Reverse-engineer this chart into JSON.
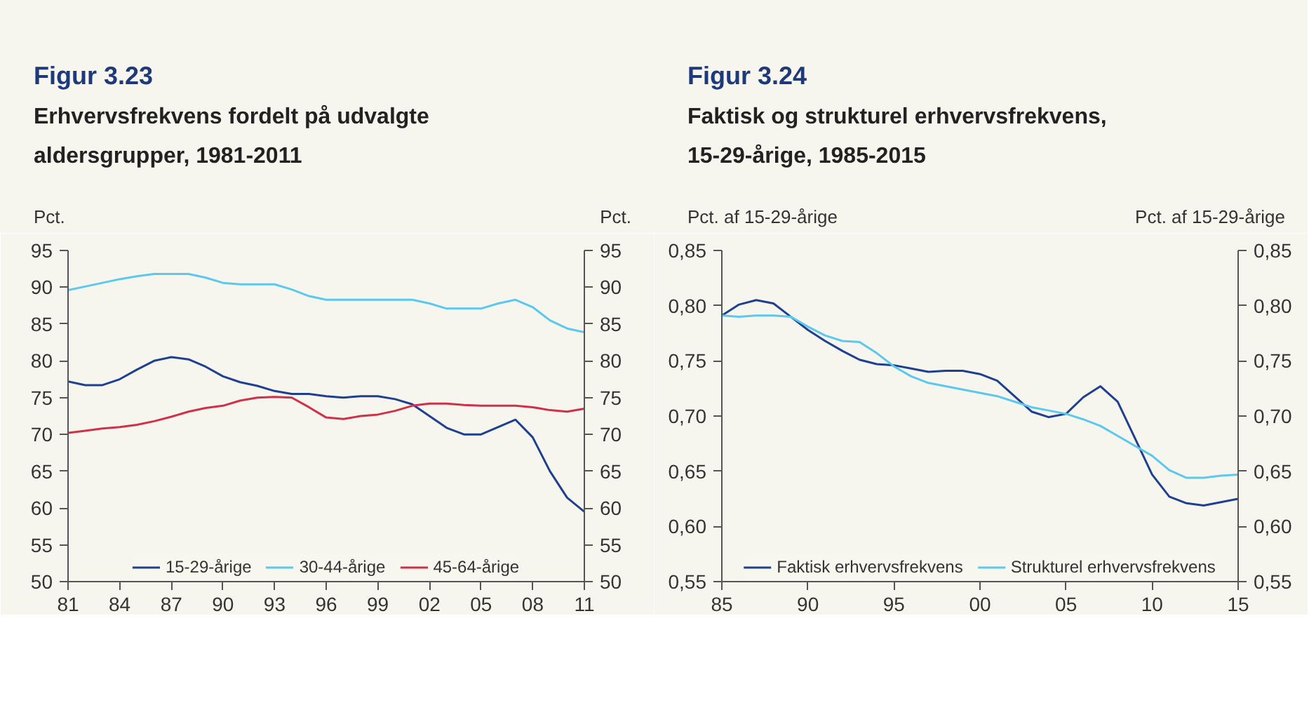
{
  "chart_data": [
    {
      "type": "line",
      "title": "Figur 3.23",
      "subtitle": "Erhvervsfrekvens fordelt på udvalgte aldersgrupper, 1981-2011",
      "ylabel": "Pct.",
      "y2label": "Pct.",
      "x": [
        1981,
        1982,
        1983,
        1984,
        1985,
        1986,
        1987,
        1988,
        1989,
        1990,
        1991,
        1992,
        1993,
        1994,
        1995,
        1996,
        1997,
        1998,
        1999,
        2000,
        2001,
        2002,
        2003,
        2004,
        2005,
        2006,
        2007,
        2008,
        2009,
        2010,
        2011
      ],
      "xlim": [
        1981,
        2011
      ],
      "xticks": [
        {
          "value": 1981,
          "label": "81"
        },
        {
          "value": 1984,
          "label": "84"
        },
        {
          "value": 1987,
          "label": "87"
        },
        {
          "value": 1990,
          "label": "90"
        },
        {
          "value": 1993,
          "label": "93"
        },
        {
          "value": 1996,
          "label": "96"
        },
        {
          "value": 1999,
          "label": "99"
        },
        {
          "value": 2002,
          "label": "02"
        },
        {
          "value": 2005,
          "label": "05"
        },
        {
          "value": 2008,
          "label": "08"
        },
        {
          "value": 2011,
          "label": "11"
        }
      ],
      "ylim": [
        50,
        95
      ],
      "yticks": [
        50,
        55,
        60,
        65,
        70,
        75,
        80,
        85,
        90,
        95
      ],
      "y2lim": [
        50,
        95
      ],
      "y2ticks": [
        50,
        55,
        60,
        65,
        70,
        75,
        80,
        85,
        90,
        95
      ],
      "series": [
        {
          "name": "15-29-årige",
          "color": "#1f3f8f",
          "values": [
            77.2,
            76.7,
            76.7,
            77.5,
            78.8,
            80.0,
            80.5,
            80.2,
            79.2,
            77.9,
            77.1,
            76.6,
            75.9,
            75.5,
            75.5,
            75.2,
            75.0,
            75.2,
            75.2,
            74.8,
            74.1,
            72.5,
            70.9,
            70.0,
            70.0,
            71.0,
            72.0,
            69.6,
            65.0,
            61.4,
            59.5
          ]
        },
        {
          "name": "30-44-årige",
          "color": "#5bc8ee",
          "values": [
            89.6,
            90.1,
            90.6,
            91.1,
            91.5,
            91.8,
            91.8,
            91.8,
            91.3,
            90.6,
            90.4,
            90.4,
            90.4,
            89.7,
            88.8,
            88.3,
            88.3,
            88.3,
            88.3,
            88.3,
            88.3,
            87.8,
            87.1,
            87.1,
            87.1,
            87.8,
            88.3,
            87.3,
            85.5,
            84.4,
            83.9
          ]
        },
        {
          "name": "45-64-årige",
          "color": "#d0304a",
          "values": [
            70.2,
            70.5,
            70.8,
            71.0,
            71.3,
            71.8,
            72.4,
            73.1,
            73.6,
            73.9,
            74.6,
            75.0,
            75.1,
            75.0,
            73.7,
            72.3,
            72.1,
            72.5,
            72.7,
            73.2,
            73.9,
            74.2,
            74.2,
            74.0,
            73.9,
            73.9,
            73.9,
            73.7,
            73.3,
            73.1,
            73.5
          ]
        }
      ],
      "grid": false,
      "legend": "bottom",
      "line_style": "solid"
    },
    {
      "type": "line",
      "title": "Figur 3.24",
      "subtitle": "Faktisk og strukturel erhvervsfrekvens, 15-29-årige, 1985-2015",
      "ylabel": "Pct. af 15-29-årige",
      "y2label": "Pct. af 15-29-årige",
      "x": [
        1985,
        1986,
        1987,
        1988,
        1989,
        1990,
        1991,
        1992,
        1993,
        1994,
        1995,
        1996,
        1997,
        1998,
        1999,
        2000,
        2001,
        2002,
        2003,
        2004,
        2005,
        2006,
        2007,
        2008,
        2009,
        2010,
        2011,
        2012,
        2013,
        2014,
        2015
      ],
      "xlim": [
        1985,
        2015
      ],
      "xticks": [
        {
          "value": 1985,
          "label": "85"
        },
        {
          "value": 1990,
          "label": "90"
        },
        {
          "value": 1995,
          "label": "95"
        },
        {
          "value": 2000,
          "label": "00"
        },
        {
          "value": 2005,
          "label": "05"
        },
        {
          "value": 2010,
          "label": "10"
        },
        {
          "value": 2015,
          "label": "15"
        }
      ],
      "ylim": [
        0.55,
        0.85
      ],
      "yticks": [
        {
          "value": 0.55,
          "label": "0,55"
        },
        {
          "value": 0.6,
          "label": "0,60"
        },
        {
          "value": 0.65,
          "label": "0,65"
        },
        {
          "value": 0.7,
          "label": "0,70"
        },
        {
          "value": 0.75,
          "label": "0,75"
        },
        {
          "value": 0.8,
          "label": "0,80"
        },
        {
          "value": 0.85,
          "label": "0,85"
        }
      ],
      "y2lim": [
        0.55,
        0.85
      ],
      "y2ticks": [
        {
          "value": 0.55,
          "label": "0,55"
        },
        {
          "value": 0.6,
          "label": "0,60"
        },
        {
          "value": 0.65,
          "label": "0,65"
        },
        {
          "value": 0.7,
          "label": "0,70"
        },
        {
          "value": 0.75,
          "label": "0,75"
        },
        {
          "value": 0.8,
          "label": "0,80"
        },
        {
          "value": 0.85,
          "label": "0,85"
        }
      ],
      "series": [
        {
          "name": "Faktisk erhvervsfrekvens",
          "color": "#1f3f8f",
          "values": [
            0.791,
            0.801,
            0.805,
            0.802,
            0.79,
            0.778,
            0.768,
            0.759,
            0.751,
            0.747,
            0.746,
            0.743,
            0.74,
            0.741,
            0.741,
            0.738,
            0.732,
            0.718,
            0.704,
            0.699,
            0.702,
            0.717,
            0.727,
            0.713,
            0.68,
            0.647,
            0.627,
            0.621,
            0.619,
            0.622,
            0.625
          ]
        },
        {
          "name": "Strukturel erhvervsfrekvens",
          "color": "#5bc8ee",
          "values": [
            0.791,
            0.79,
            0.791,
            0.791,
            0.79,
            0.781,
            0.773,
            0.768,
            0.767,
            0.757,
            0.745,
            0.736,
            0.73,
            0.727,
            0.724,
            0.721,
            0.718,
            0.713,
            0.708,
            0.705,
            0.702,
            0.697,
            0.691,
            0.682,
            0.673,
            0.664,
            0.651,
            0.644,
            0.644,
            0.646,
            0.647
          ]
        }
      ],
      "grid": false,
      "legend": "bottom",
      "line_style": "solid"
    }
  ]
}
